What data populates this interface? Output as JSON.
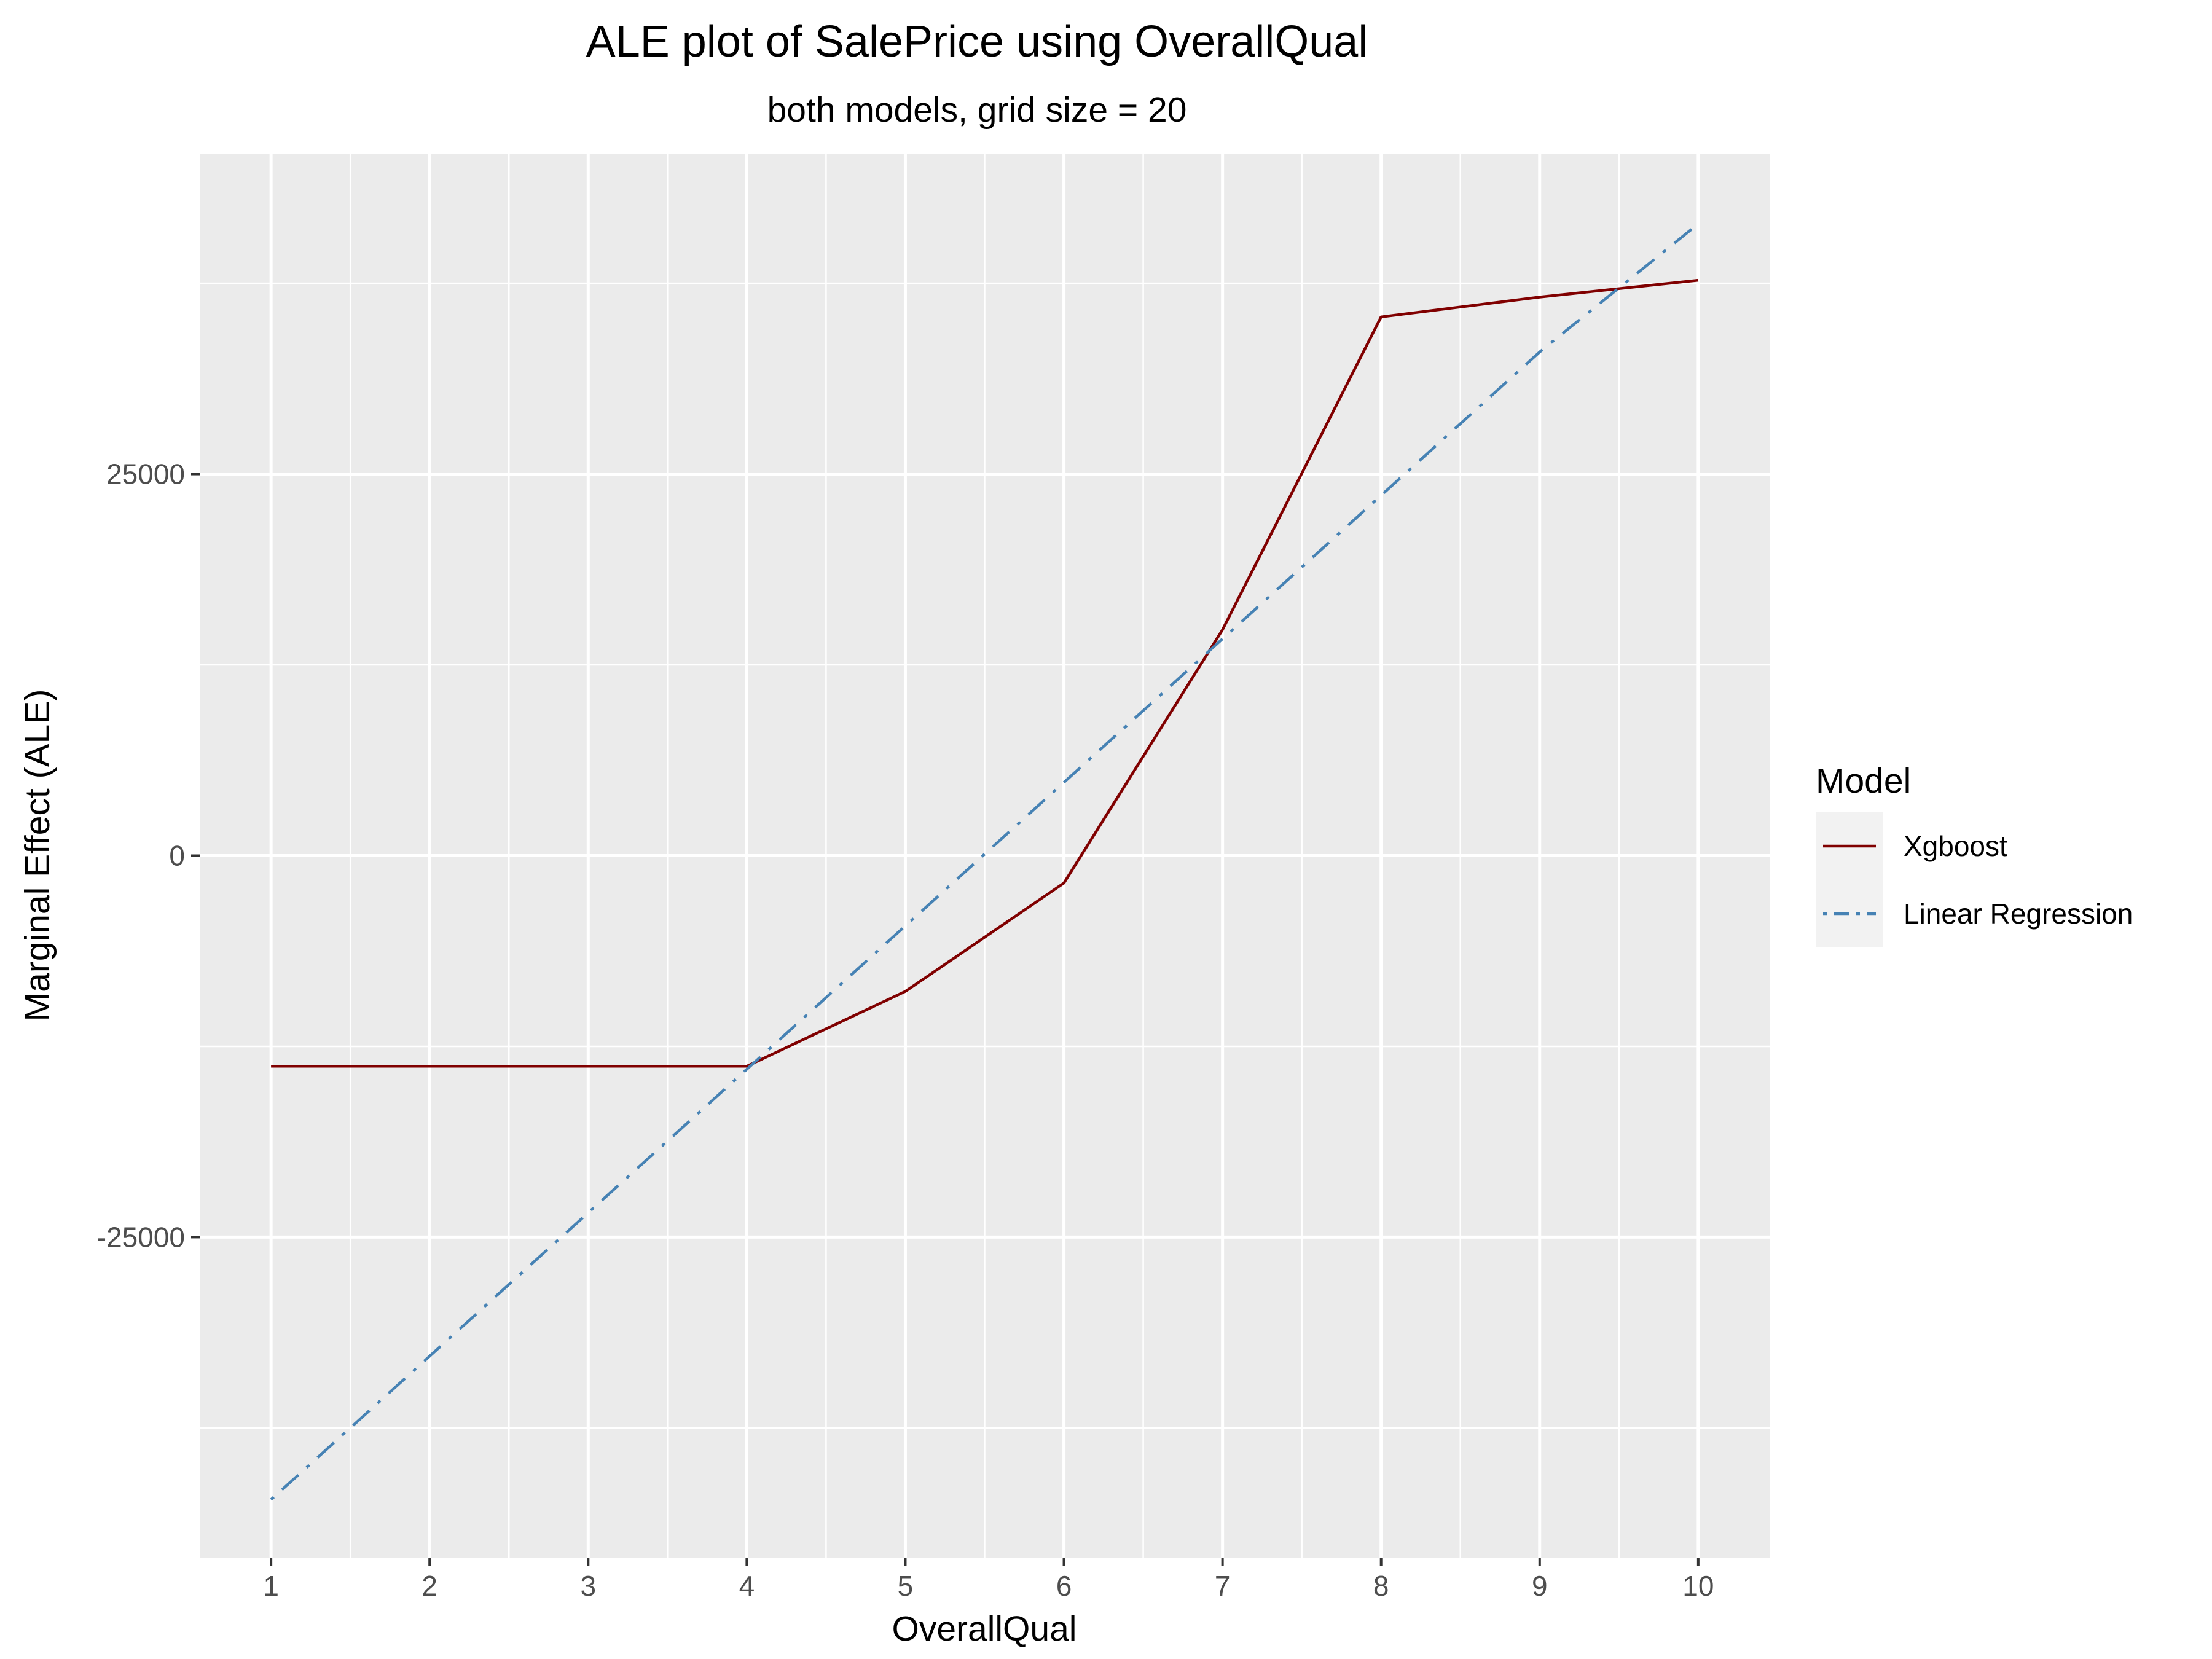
{
  "chart_data": {
    "type": "line",
    "title": "ALE plot of SalePrice using OverallQual",
    "subtitle": "both models, grid size = 20",
    "xlabel": "OverallQual",
    "ylabel": "Marginal Effect (ALE)",
    "xlim": [
      0.55,
      10.45
    ],
    "ylim": [
      -46000,
      46000
    ],
    "x_ticks": [
      1,
      2,
      3,
      4,
      5,
      6,
      7,
      8,
      9,
      10
    ],
    "x_tick_labels": [
      "1",
      "2",
      "3",
      "4",
      "5",
      "6",
      "7",
      "8",
      "9",
      "10"
    ],
    "y_ticks": [
      -25000,
      0,
      25000
    ],
    "y_tick_labels": [
      "-25000",
      "0",
      "25000"
    ],
    "grid": true,
    "legend": {
      "title": "Model",
      "position": "right"
    },
    "series": [
      {
        "name": "Xgboost",
        "color": "#800000",
        "dash": "solid",
        "x": [
          1,
          2,
          3,
          4,
          5,
          6,
          7,
          8,
          9,
          10
        ],
        "y": [
          -13800,
          -13800,
          -13800,
          -13800,
          -8900,
          -1800,
          14800,
          35300,
          36600,
          37700
        ]
      },
      {
        "name": "Linear Regression",
        "color": "#4682b4",
        "dash": "dotdash",
        "x": [
          1,
          2,
          3,
          4,
          5,
          6,
          7,
          8,
          9,
          10
        ],
        "y": [
          -42200,
          -32800,
          -23400,
          -14000,
          -4600,
          4800,
          14200,
          23600,
          33000,
          41400
        ]
      }
    ]
  }
}
